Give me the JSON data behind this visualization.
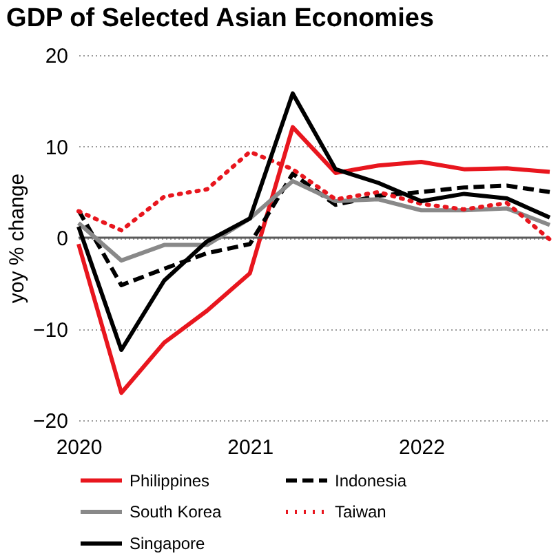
{
  "chart_data": {
    "type": "line",
    "title": "GDP of Selected Asian Economies",
    "ylabel": "yoy  % change",
    "categories": [
      "2020",
      null,
      null,
      null,
      "2021",
      null,
      null,
      null,
      "2022",
      null,
      null,
      null
    ],
    "series": [
      {
        "name": "Philippines",
        "color": "#e8161e",
        "line_style": "solid",
        "values": [
          -0.7,
          -17.0,
          -11.5,
          -8.0,
          -3.9,
          12.1,
          7.1,
          7.9,
          8.3,
          7.5,
          7.6,
          7.2
        ]
      },
      {
        "name": "Indonesia",
        "color": "#000000",
        "line_style": "dashed",
        "values": [
          3.0,
          -5.2,
          -3.4,
          -1.7,
          -0.7,
          7.0,
          3.6,
          4.6,
          5.0,
          5.5,
          5.7,
          5.0
        ]
      },
      {
        "name": "South Korea",
        "color": "#898989",
        "line_style": "solid",
        "values": [
          1.6,
          -2.5,
          -0.8,
          -0.8,
          2.1,
          6.2,
          4.0,
          4.2,
          3.0,
          3.0,
          3.2,
          1.4
        ]
      },
      {
        "name": "Taiwan",
        "color": "#e8161e",
        "line_style": "dotted",
        "values": [
          2.9,
          0.8,
          4.5,
          5.3,
          9.4,
          7.5,
          4.2,
          5.0,
          3.7,
          3.1,
          3.8,
          -0.2
        ]
      },
      {
        "name": "Singapore",
        "color": "#000000",
        "line_style": "solid",
        "values": [
          1.2,
          -12.3,
          -4.7,
          -0.4,
          2.1,
          15.8,
          7.5,
          6.0,
          4.0,
          4.8,
          4.3,
          2.2
        ]
      }
    ],
    "ylim": [
      -20,
      20
    ],
    "yticks": [
      -20,
      -10,
      0,
      10,
      20
    ],
    "grid": "y",
    "legend": "bottom",
    "marker": "none",
    "ref_lines": [
      {
        "axis": "y",
        "value": 0,
        "color": "#595959",
        "line_style": "solid"
      }
    ]
  }
}
